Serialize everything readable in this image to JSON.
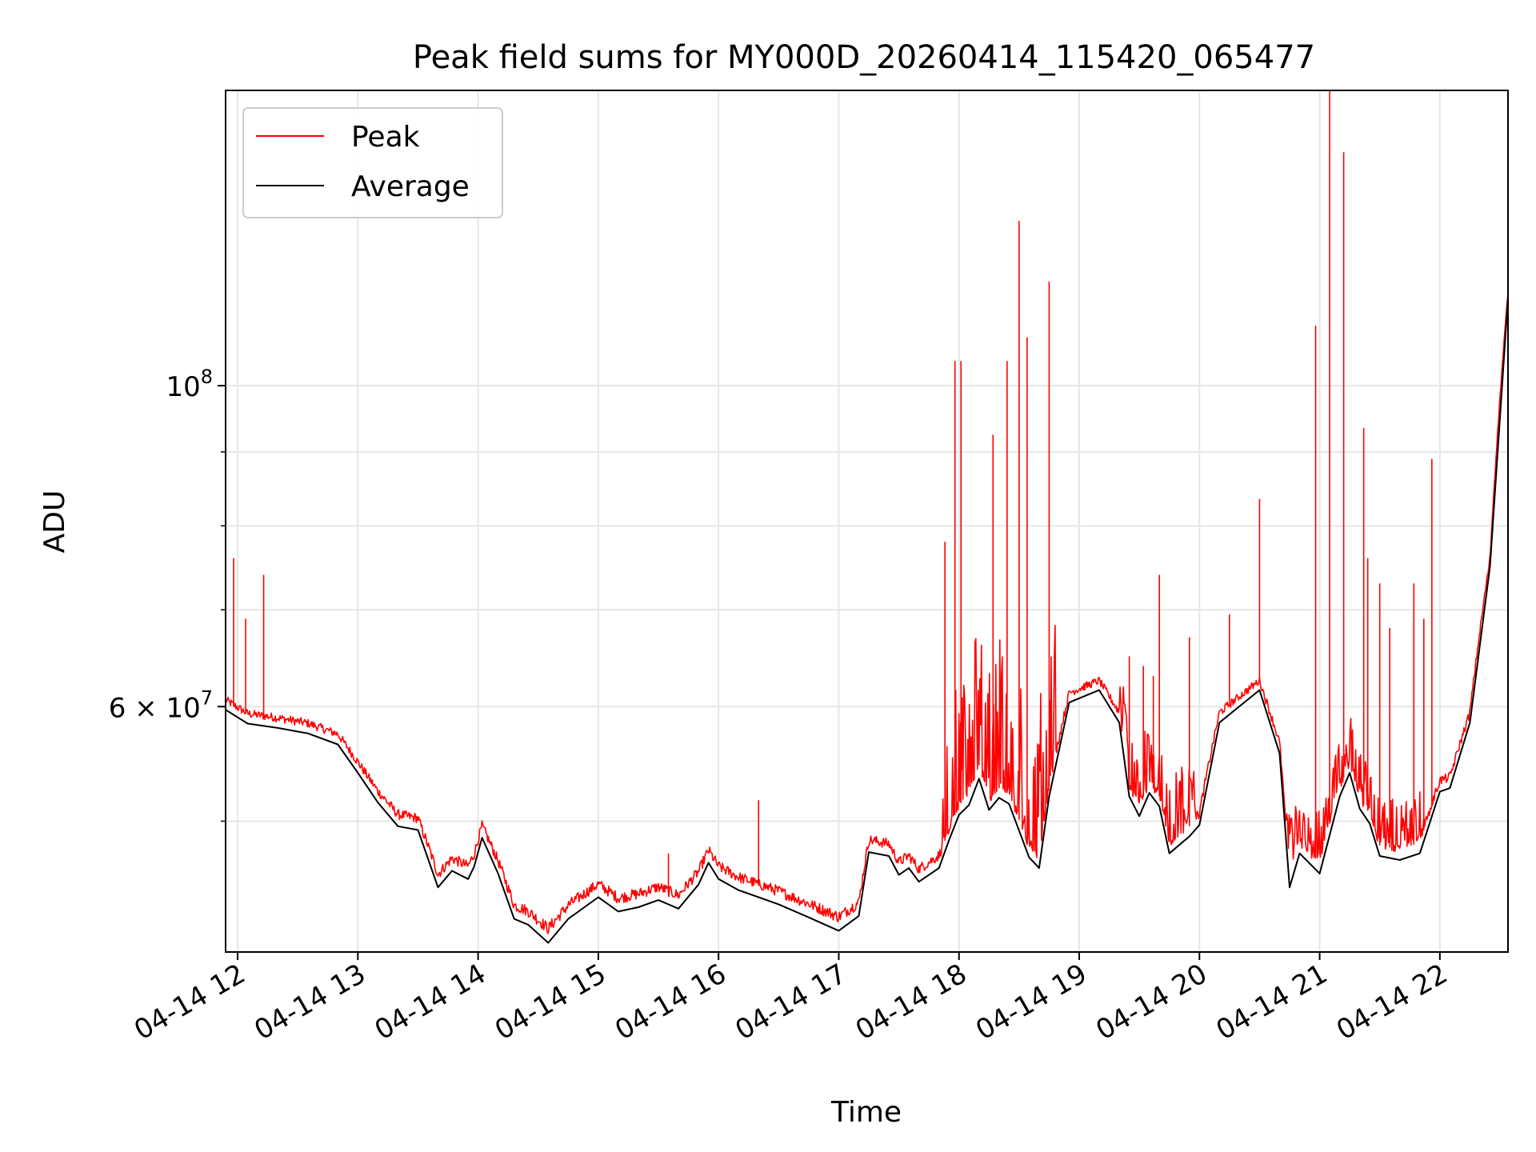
{
  "chart_data": {
    "type": "line",
    "title": "Peak field sums for MY000D_20260414_115420_065477",
    "xlabel": "Time",
    "ylabel": "ADU",
    "y_scale": "log",
    "ylim": [
      40600000,
      160000000
    ],
    "xlim": [
      "2026-04-14 11:54",
      "2026-04-14 22:34"
    ],
    "grid": true,
    "legend_position": "upper-left",
    "x_ticks": [
      {
        "t": "2026-04-14 12:00",
        "label": "04-14 12"
      },
      {
        "t": "2026-04-14 13:00",
        "label": "04-14 13"
      },
      {
        "t": "2026-04-14 14:00",
        "label": "04-14 14"
      },
      {
        "t": "2026-04-14 15:00",
        "label": "04-14 15"
      },
      {
        "t": "2026-04-14 16:00",
        "label": "04-14 16"
      },
      {
        "t": "2026-04-14 17:00",
        "label": "04-14 17"
      },
      {
        "t": "2026-04-14 18:00",
        "label": "04-14 18"
      },
      {
        "t": "2026-04-14 19:00",
        "label": "04-14 19"
      },
      {
        "t": "2026-04-14 20:00",
        "label": "04-14 20"
      },
      {
        "t": "2026-04-14 21:00",
        "label": "04-14 21"
      },
      {
        "t": "2026-04-14 22:00",
        "label": "04-14 22"
      }
    ],
    "y_major_ticks": [
      {
        "value": 60000000,
        "base": "6 × 10",
        "exp": "7"
      },
      {
        "value": 100000000,
        "base": "10",
        "exp": "8"
      }
    ],
    "y_minor_ticks": [
      50000000,
      70000000,
      80000000,
      90000000
    ],
    "series": [
      {
        "name": "Average",
        "color": "#000000",
        "points": [
          [
            "2026-04-14 11:54",
            59.7
          ],
          [
            "2026-04-14 12:05",
            58.4
          ],
          [
            "2026-04-14 12:20",
            58.0
          ],
          [
            "2026-04-14 12:35",
            57.5
          ],
          [
            "2026-04-14 12:50",
            56.5
          ],
          [
            "2026-04-14 13:00",
            54.0
          ],
          [
            "2026-04-14 13:10",
            51.5
          ],
          [
            "2026-04-14 13:20",
            49.6
          ],
          [
            "2026-04-14 13:30",
            49.3
          ],
          [
            "2026-04-14 13:40",
            45.0
          ],
          [
            "2026-04-14 13:47",
            46.2
          ],
          [
            "2026-04-14 13:55",
            45.6
          ],
          [
            "2026-04-14 13:58",
            46.5
          ],
          [
            "2026-04-14 14:02",
            48.7
          ],
          [
            "2026-04-14 14:10",
            46.0
          ],
          [
            "2026-04-14 14:18",
            42.8
          ],
          [
            "2026-04-14 14:25",
            42.4
          ],
          [
            "2026-04-14 14:35",
            41.2
          ],
          [
            "2026-04-14 14:45",
            42.8
          ],
          [
            "2026-04-14 15:00",
            44.3
          ],
          [
            "2026-04-14 15:10",
            43.3
          ],
          [
            "2026-04-14 15:20",
            43.6
          ],
          [
            "2026-04-14 15:30",
            44.1
          ],
          [
            "2026-04-14 15:40",
            43.5
          ],
          [
            "2026-04-14 15:50",
            45.2
          ],
          [
            "2026-04-14 15:55",
            46.8
          ],
          [
            "2026-04-14 16:00",
            45.6
          ],
          [
            "2026-04-14 16:10",
            44.8
          ],
          [
            "2026-04-14 16:20",
            44.3
          ],
          [
            "2026-04-14 16:30",
            43.8
          ],
          [
            "2026-04-14 16:45",
            42.9
          ],
          [
            "2026-04-14 17:00",
            42.0
          ],
          [
            "2026-04-14 17:10",
            43.0
          ],
          [
            "2026-04-14 17:15",
            47.6
          ],
          [
            "2026-04-14 17:25",
            47.3
          ],
          [
            "2026-04-14 17:30",
            45.9
          ],
          [
            "2026-04-14 17:35",
            46.4
          ],
          [
            "2026-04-14 17:40",
            45.4
          ],
          [
            "2026-04-14 17:50",
            46.4
          ],
          [
            "2026-04-14 17:55",
            48.5
          ],
          [
            "2026-04-14 18:00",
            50.5
          ],
          [
            "2026-04-14 18:05",
            51.3
          ],
          [
            "2026-04-14 18:10",
            53.5
          ],
          [
            "2026-04-14 18:15",
            50.9
          ],
          [
            "2026-04-14 18:20",
            51.9
          ],
          [
            "2026-04-14 18:25",
            51.4
          ],
          [
            "2026-04-14 18:35",
            47.2
          ],
          [
            "2026-04-14 18:40",
            46.4
          ],
          [
            "2026-04-14 18:45",
            52.0
          ],
          [
            "2026-04-14 18:55",
            60.4
          ],
          [
            "2026-04-14 19:10",
            61.6
          ],
          [
            "2026-04-14 19:20",
            58.5
          ],
          [
            "2026-04-14 19:25",
            52.0
          ],
          [
            "2026-04-14 19:30",
            50.4
          ],
          [
            "2026-04-14 19:35",
            52.3
          ],
          [
            "2026-04-14 19:40",
            51.2
          ],
          [
            "2026-04-14 19:45",
            47.5
          ],
          [
            "2026-04-14 19:55",
            48.8
          ],
          [
            "2026-04-14 20:00",
            49.7
          ],
          [
            "2026-04-14 20:10",
            58.5
          ],
          [
            "2026-04-14 20:30",
            61.6
          ],
          [
            "2026-04-14 20:40",
            55.7
          ],
          [
            "2026-04-14 20:45",
            45.0
          ],
          [
            "2026-04-14 20:50",
            47.5
          ],
          [
            "2026-04-14 21:00",
            46.0
          ],
          [
            "2026-04-14 21:10",
            52.0
          ],
          [
            "2026-04-14 21:15",
            54.0
          ],
          [
            "2026-04-14 21:20",
            51.0
          ],
          [
            "2026-04-14 21:25",
            49.8
          ],
          [
            "2026-04-14 21:30",
            47.3
          ],
          [
            "2026-04-14 21:40",
            47.0
          ],
          [
            "2026-04-14 21:50",
            47.5
          ],
          [
            "2026-04-14 22:00",
            52.4
          ],
          [
            "2026-04-14 22:05",
            52.7
          ],
          [
            "2026-04-14 22:15",
            58.5
          ],
          [
            "2026-04-14 22:25",
            75.0
          ],
          [
            "2026-04-14 22:34",
            115.0
          ]
        ]
      },
      {
        "name": "Peak",
        "color": "#ff0000",
        "base_offset": 0.9,
        "spikes": [
          [
            "2026-04-14 11:58",
            76.0
          ],
          [
            "2026-04-14 12:04",
            69.0
          ],
          [
            "2026-04-14 12:13",
            74.0
          ],
          [
            "2026-04-14 16:20",
            51.7
          ],
          [
            "2026-04-14 15:35",
            47.5
          ],
          [
            "2026-04-14 17:53",
            78.0
          ],
          [
            "2026-04-14 17:58",
            104.0
          ],
          [
            "2026-04-14 18:01",
            104.0
          ],
          [
            "2026-04-14 18:17",
            92.5
          ],
          [
            "2026-04-14 18:24",
            104.0
          ],
          [
            "2026-04-14 18:30",
            130.0
          ],
          [
            "2026-04-14 18:34",
            108.0
          ],
          [
            "2026-04-14 18:45",
            118.0
          ],
          [
            "2026-04-14 19:25",
            65.0
          ],
          [
            "2026-04-14 19:32",
            64.0
          ],
          [
            "2026-04-14 19:37",
            63.0
          ],
          [
            "2026-04-14 19:40",
            74.0
          ],
          [
            "2026-04-14 19:55",
            67.0
          ],
          [
            "2026-04-14 20:15",
            69.5
          ],
          [
            "2026-04-14 20:30",
            83.5
          ],
          [
            "2026-04-14 20:58",
            110.0
          ],
          [
            "2026-04-14 21:05",
            160.0
          ],
          [
            "2026-04-14 21:12",
            145.0
          ],
          [
            "2026-04-14 21:22",
            93.5
          ],
          [
            "2026-04-14 21:24",
            76.0
          ],
          [
            "2026-04-14 21:30",
            73.0
          ],
          [
            "2026-04-14 21:35",
            68.0
          ],
          [
            "2026-04-14 21:47",
            73.0
          ],
          [
            "2026-04-14 21:52",
            69.0
          ],
          [
            "2026-04-14 21:56",
            89.0
          ]
        ]
      }
    ]
  }
}
